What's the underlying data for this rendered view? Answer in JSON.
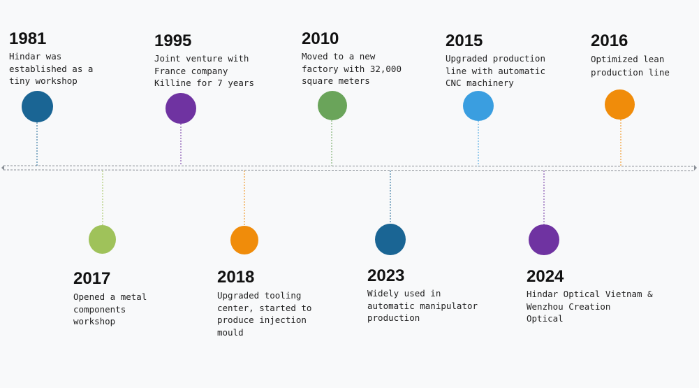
{
  "events": [
    {
      "year": "1981",
      "text": "Hindar was\nestablished as a\ntiny workshop",
      "color": "#1a6594"
    },
    {
      "year": "1995",
      "text": "Joint venture with\nFrance company\nKilline for 7 years",
      "color": "#6f33a1"
    },
    {
      "year": "2010",
      "text": "Moved to a new\nfactory with 32,000\nsquare meters",
      "color": "#6aa45a"
    },
    {
      "year": "2015",
      "text": "Upgraded production\nline with automatic\nCNC machinery",
      "color": "#3a9ee0"
    },
    {
      "year": "2016",
      "text": "Optimized lean\nproduction line",
      "color": "#f08c0a"
    },
    {
      "year": "2017",
      "text": "Opened a metal\ncomponents\nworkshop",
      "color": "#9fc25a"
    },
    {
      "year": "2018",
      "text": "Upgraded tooling\ncenter, started to\nproduce injection\nmould",
      "color": "#f08c0a"
    },
    {
      "year": "2023",
      "text": "Widely used in\nautomatic manipulator\nproduction",
      "color": "#1a6594"
    },
    {
      "year": "2024",
      "text": "Hindar Optical Vietnam &\nWenzhou Creation\nOptical",
      "color": "#6f33a1"
    }
  ]
}
